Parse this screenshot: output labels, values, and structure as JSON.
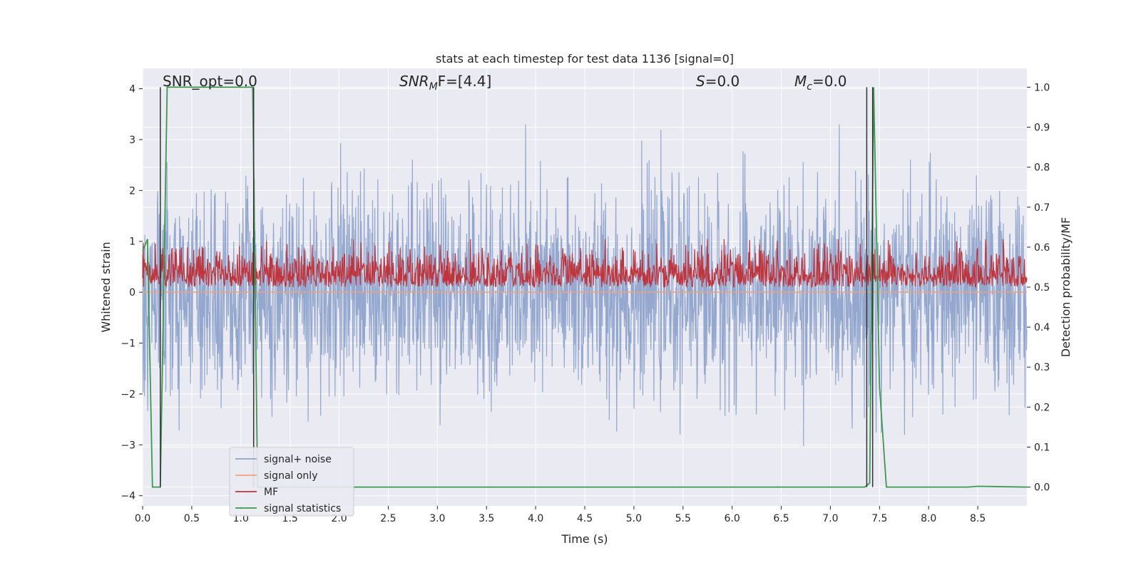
{
  "chart_data": {
    "type": "line",
    "title": "stats at each timestep for test data 1136 [signal=0]",
    "xlabel": "Time (s)",
    "ylabel": "Whitened strain",
    "y2label": "Detection probability/MF",
    "xlim": [
      0.0,
      9.0
    ],
    "ylim": [
      -4.2,
      4.4
    ],
    "y2lim": [
      -0.047,
      1.047
    ],
    "x_ticks": [
      "0.0",
      "0.5",
      "1.0",
      "1.5",
      "2.0",
      "2.5",
      "3.0",
      "3.5",
      "4.0",
      "4.5",
      "5.0",
      "5.5",
      "6.0",
      "6.5",
      "7.0",
      "7.5",
      "8.0",
      "8.5"
    ],
    "y_ticks": [
      "4",
      "3",
      "2",
      "1",
      "0",
      "−1",
      "−2",
      "−3",
      "−4"
    ],
    "y2_ticks": [
      "1.0",
      "0.9",
      "0.8",
      "0.7",
      "0.6",
      "0.5",
      "0.4",
      "0.3",
      "0.2",
      "0.1",
      "0.0"
    ],
    "grid": true,
    "legend_position": "lower-left",
    "annotations": [
      {
        "id": "snr-opt",
        "text": "SNR_opt=0.0"
      },
      {
        "id": "snr-mf",
        "text": "SNR_MF=[4.4]",
        "base": "SNR",
        "sub": "M",
        "rest": "F=[4.4]"
      },
      {
        "id": "s",
        "text": "S=0.0",
        "base": "S",
        "rest": "=0.0"
      },
      {
        "id": "mc",
        "text": "M_c=0.0",
        "base": "M",
        "sub": "c",
        "rest": "=0.0"
      }
    ],
    "series": [
      {
        "name": "signal+ noise",
        "color": "#8fa4cc",
        "axis": "left",
        "description_range": [
          -3.7,
          3.3
        ],
        "envelope_values": {
          "typical_abs_max": 1.6
        }
      },
      {
        "name": "signal only",
        "color": "#f0a07a",
        "axis": "left",
        "x": [
          0.0,
          9.0
        ],
        "values": [
          0.0,
          0.0
        ]
      },
      {
        "name": "MF",
        "color": "#c0343c",
        "axis": "right",
        "baseline": 0.5,
        "typical_max": 0.62
      },
      {
        "name": "signal statistics",
        "color": "#3a9a4e",
        "axis": "right",
        "x": [
          0.0,
          0.05,
          0.1,
          0.15,
          0.18,
          0.25,
          1.12,
          1.17,
          1.2,
          7.35,
          7.4,
          7.44,
          7.5,
          7.57,
          8.4,
          8.5,
          9.0
        ],
        "values": [
          0.59,
          0.62,
          0.0,
          0.0,
          0.0,
          1.0,
          1.0,
          0.0,
          0.0,
          0.0,
          0.01,
          1.0,
          0.25,
          0.0,
          0.0,
          0.002,
          0.0
        ]
      }
    ],
    "vertical_markers_x": [
      0.18,
      1.13,
      7.37,
      7.43
    ]
  },
  "legend": [
    {
      "label": "signal+ noise",
      "color": "#8fa4cc"
    },
    {
      "label": "signal only",
      "color": "#f0a07a"
    },
    {
      "label": "MF",
      "color": "#c0343c"
    },
    {
      "label": "signal statistics",
      "color": "#3a9a4e"
    }
  ],
  "colors": {
    "plot_background": "#eaeaf2",
    "grid": "#ffffff",
    "marker_line": "#333333"
  }
}
